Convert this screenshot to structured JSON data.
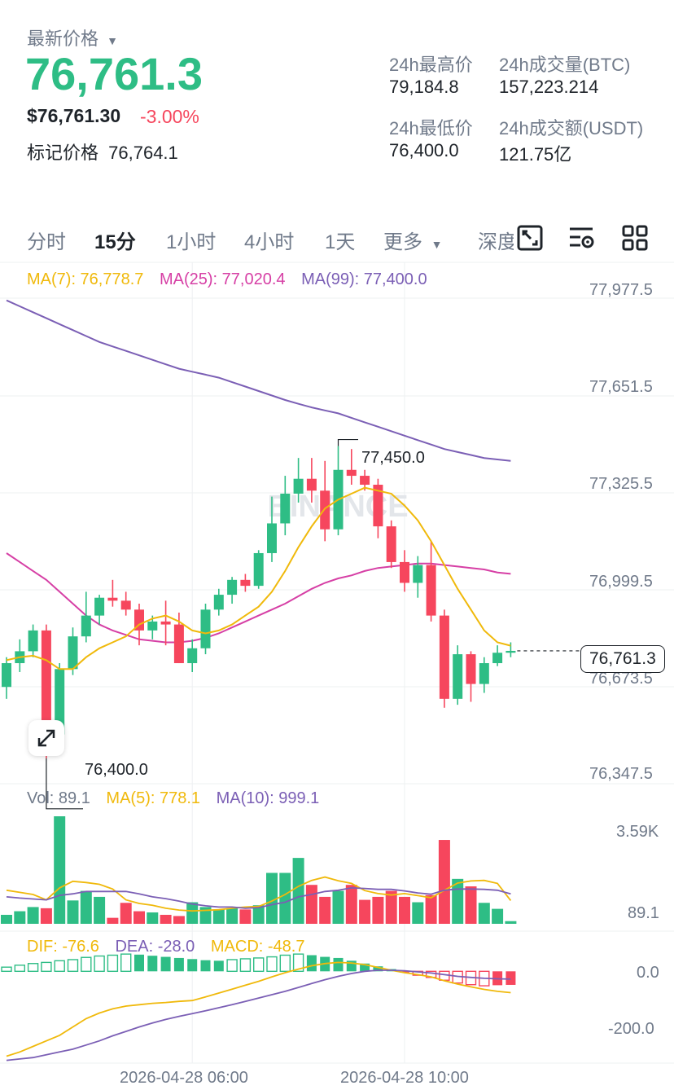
{
  "header": {
    "latest_price_label": "最新价格",
    "latest_price": "76,761.3",
    "usd_price": "$76,761.30",
    "change_percent": "-3.00%",
    "mark_price_label": "标记价格",
    "mark_price": "76,764.1",
    "high_24h_label": "24h最高价",
    "high_24h": "79,184.8",
    "low_24h_label": "24h最低价",
    "low_24h": "76,400.0",
    "vol_btc_label": "24h成交量(BTC)",
    "vol_btc": "157,223.214",
    "vol_usdt_label": "24h成交额(USDT)",
    "vol_usdt": "121.75亿"
  },
  "tabs": [
    {
      "label": "分时",
      "active": false
    },
    {
      "label": "15分",
      "active": true
    },
    {
      "label": "1小时",
      "active": false
    },
    {
      "label": "4小时",
      "active": false
    },
    {
      "label": "1天",
      "active": false
    },
    {
      "label": "更多",
      "active": false
    },
    {
      "label": "深度",
      "active": false
    }
  ],
  "toolbar_icons": [
    "fullscreen-toggle-icon",
    "indicator-settings-icon",
    "grid-layout-icon"
  ],
  "legend": {
    "ma7": "MA(7): 76,778.7",
    "ma25": "MA(25): 77,020.4",
    "ma99": "MA(99): 77,400.0"
  },
  "price_axis": [
    "77,977.5",
    "77,651.5",
    "77,325.5",
    "76,999.5",
    "76,673.5",
    "76,347.5"
  ],
  "current_price_tag": "76,761.3",
  "high_marker": "77,450.0",
  "low_marker": "76,400.0",
  "watermark": "BINANCE",
  "volume_legend": {
    "vol": "Vol: 89.1",
    "ma5": "MA(5): 778.1",
    "ma10": "MA(10): 999.1"
  },
  "volume_axis": [
    "3.59K",
    "89.1"
  ],
  "macd_legend": {
    "dif": "DIF: -76.6",
    "dea": "DEA: -28.0",
    "macd": "MACD: -48.7"
  },
  "macd_axis": [
    "0.0",
    "-200.0"
  ],
  "time_axis": [
    "2026-04-28 06:00",
    "2026-04-28 10:00"
  ],
  "colors": {
    "up": "#2ebd85",
    "down": "#f6465d",
    "ma7": "#f0b90b",
    "ma25": "#d63fa5",
    "ma99": "#7b5fb5",
    "grid": "#eef0f2"
  },
  "chart_data": {
    "type": "candlestick",
    "interval": "15分",
    "ylim": [
      76347.5,
      77977.5
    ],
    "candles": [
      {
        "o": 76640,
        "h": 76740,
        "l": 76600,
        "c": 76720
      },
      {
        "o": 76720,
        "h": 76800,
        "l": 76690,
        "c": 76760
      },
      {
        "o": 76760,
        "h": 76850,
        "l": 76740,
        "c": 76830
      },
      {
        "o": 76830,
        "h": 76850,
        "l": 76400,
        "c": 76480
      },
      {
        "o": 76480,
        "h": 76720,
        "l": 76440,
        "c": 76700
      },
      {
        "o": 76700,
        "h": 76840,
        "l": 76680,
        "c": 76810
      },
      {
        "o": 76810,
        "h": 76960,
        "l": 76790,
        "c": 76880
      },
      {
        "o": 76880,
        "h": 76950,
        "l": 76850,
        "c": 76940
      },
      {
        "o": 76940,
        "h": 77000,
        "l": 76910,
        "c": 76930
      },
      {
        "o": 76930,
        "h": 76960,
        "l": 76880,
        "c": 76900
      },
      {
        "o": 76900,
        "h": 76920,
        "l": 76780,
        "c": 76830
      },
      {
        "o": 76830,
        "h": 76880,
        "l": 76800,
        "c": 76860
      },
      {
        "o": 76860,
        "h": 76930,
        "l": 76780,
        "c": 76850
      },
      {
        "o": 76850,
        "h": 76890,
        "l": 76720,
        "c": 76720
      },
      {
        "o": 76720,
        "h": 76800,
        "l": 76690,
        "c": 76770
      },
      {
        "o": 76770,
        "h": 76920,
        "l": 76750,
        "c": 76900
      },
      {
        "o": 76900,
        "h": 76970,
        "l": 76880,
        "c": 76950
      },
      {
        "o": 76950,
        "h": 77010,
        "l": 76920,
        "c": 77000
      },
      {
        "o": 77000,
        "h": 77020,
        "l": 76960,
        "c": 76980
      },
      {
        "o": 76980,
        "h": 77100,
        "l": 76970,
        "c": 77090
      },
      {
        "o": 77090,
        "h": 77280,
        "l": 77060,
        "c": 77190
      },
      {
        "o": 77190,
        "h": 77350,
        "l": 77150,
        "c": 77290
      },
      {
        "o": 77290,
        "h": 77410,
        "l": 77260,
        "c": 77340
      },
      {
        "o": 77340,
        "h": 77410,
        "l": 77260,
        "c": 77300
      },
      {
        "o": 77300,
        "h": 77400,
        "l": 77130,
        "c": 77170
      },
      {
        "o": 77170,
        "h": 77450,
        "l": 77150,
        "c": 77370
      },
      {
        "o": 77370,
        "h": 77440,
        "l": 77320,
        "c": 77350
      },
      {
        "o": 77350,
        "h": 77370,
        "l": 77300,
        "c": 77320
      },
      {
        "o": 77320,
        "h": 77340,
        "l": 77140,
        "c": 77180
      },
      {
        "o": 77180,
        "h": 77200,
        "l": 77040,
        "c": 77060
      },
      {
        "o": 77060,
        "h": 77100,
        "l": 76960,
        "c": 76990
      },
      {
        "o": 76990,
        "h": 77080,
        "l": 76940,
        "c": 77050
      },
      {
        "o": 77050,
        "h": 77130,
        "l": 76860,
        "c": 76880
      },
      {
        "o": 76880,
        "h": 76900,
        "l": 76570,
        "c": 76600
      },
      {
        "o": 76600,
        "h": 76780,
        "l": 76580,
        "c": 76750
      },
      {
        "o": 76750,
        "h": 76760,
        "l": 76590,
        "c": 76650
      },
      {
        "o": 76650,
        "h": 76740,
        "l": 76620,
        "c": 76720
      },
      {
        "o": 76720,
        "h": 76780,
        "l": 76710,
        "c": 76755
      },
      {
        "o": 76755,
        "h": 76790,
        "l": 76740,
        "c": 76761.3
      }
    ],
    "ma7": [
      76730,
      76740,
      76745,
      76730,
      76700,
      76700,
      76740,
      76770,
      76790,
      76810,
      76850,
      76870,
      76880,
      76860,
      76830,
      76820,
      76830,
      76850,
      76880,
      76910,
      76960,
      77030,
      77110,
      77180,
      77240,
      77270,
      77290,
      77310,
      77300,
      77290,
      77250,
      77200,
      77130,
      77050,
      76970,
      76900,
      76830,
      76790,
      76778.7
    ],
    "ma25": [
      77090,
      77060,
      77030,
      77000,
      76960,
      76920,
      76880,
      76850,
      76830,
      76815,
      76800,
      76795,
      76790,
      76790,
      76795,
      76805,
      76820,
      76840,
      76860,
      76880,
      76900,
      76920,
      76945,
      76970,
      76990,
      77005,
      77015,
      77030,
      77040,
      77045,
      77050,
      77055,
      77055,
      77050,
      77045,
      77040,
      77035,
      77025,
      77020.4
    ],
    "ma99": [
      77940,
      77920,
      77900,
      77880,
      77860,
      77840,
      77820,
      77800,
      77785,
      77770,
      77755,
      77740,
      77725,
      77710,
      77700,
      77690,
      77680,
      77665,
      77650,
      77635,
      77620,
      77605,
      77592,
      77580,
      77570,
      77560,
      77545,
      77530,
      77515,
      77500,
      77485,
      77470,
      77455,
      77440,
      77430,
      77420,
      77410,
      77405,
      77400
    ],
    "volume": [
      300,
      420,
      560,
      520,
      3590,
      780,
      1100,
      900,
      200,
      700,
      420,
      380,
      300,
      260,
      720,
      560,
      480,
      520,
      480,
      620,
      1700,
      1700,
      2200,
      1300,
      900,
      1100,
      1300,
      800,
      900,
      1100,
      900,
      720,
      960,
      2800,
      1500,
      1250,
      700,
      500,
      89.1
    ],
    "vol_ma5": [
      1120,
      1050,
      980,
      800,
      1200,
      1420,
      1380,
      1320,
      1160,
      800,
      680,
      620,
      520,
      460,
      430,
      450,
      470,
      520,
      560,
      580,
      760,
      980,
      1250,
      1450,
      1560,
      1440,
      1350,
      1110,
      1010,
      960,
      1010,
      940,
      870,
      1120,
      1360,
      1430,
      1450,
      1350,
      778.1
    ],
    "vol_ma10": [
      900,
      860,
      830,
      800,
      950,
      1000,
      1080,
      1080,
      1080,
      1080,
      1000,
      900,
      840,
      760,
      660,
      600,
      560,
      560,
      520,
      540,
      640,
      720,
      900,
      980,
      1080,
      1120,
      1200,
      1180,
      1150,
      1150,
      1100,
      1030,
      990,
      1120,
      1160,
      1160,
      1150,
      1120,
      999.1
    ],
    "macd_hist": [
      15,
      22,
      28,
      32,
      38,
      42,
      50,
      55,
      58,
      62,
      60,
      56,
      52,
      48,
      44,
      40,
      38,
      42,
      45,
      48,
      52,
      58,
      62,
      58,
      52,
      48,
      38,
      28,
      18,
      8,
      -4,
      -14,
      -22,
      -32,
      -42,
      -48,
      -52,
      -50,
      -48.7
    ],
    "dif": [
      -305,
      -290,
      -270,
      -250,
      -230,
      -200,
      -170,
      -150,
      -135,
      -125,
      -120,
      -115,
      -112,
      -108,
      -105,
      -92,
      -78,
      -64,
      -50,
      -36,
      -20,
      -5,
      8,
      20,
      28,
      32,
      30,
      24,
      14,
      4,
      -5,
      -12,
      -20,
      -34,
      -46,
      -56,
      -65,
      -72,
      -76.6
    ],
    "dea": [
      -320,
      -315,
      -310,
      -300,
      -290,
      -280,
      -265,
      -250,
      -232,
      -216,
      -200,
      -186,
      -173,
      -162,
      -152,
      -142,
      -131,
      -120,
      -108,
      -96,
      -84,
      -72,
      -58,
      -44,
      -30,
      -18,
      -8,
      0,
      4,
      4,
      2,
      -2,
      -6,
      -12,
      -18,
      -22,
      -25,
      -27,
      -28.0
    ],
    "macd_ylim": [
      -330,
      80
    ],
    "time_ticks": [
      {
        "index": 14,
        "label": "2026-04-28 06:00"
      },
      {
        "index": 30,
        "label": "2026-04-28 10:00"
      }
    ]
  }
}
